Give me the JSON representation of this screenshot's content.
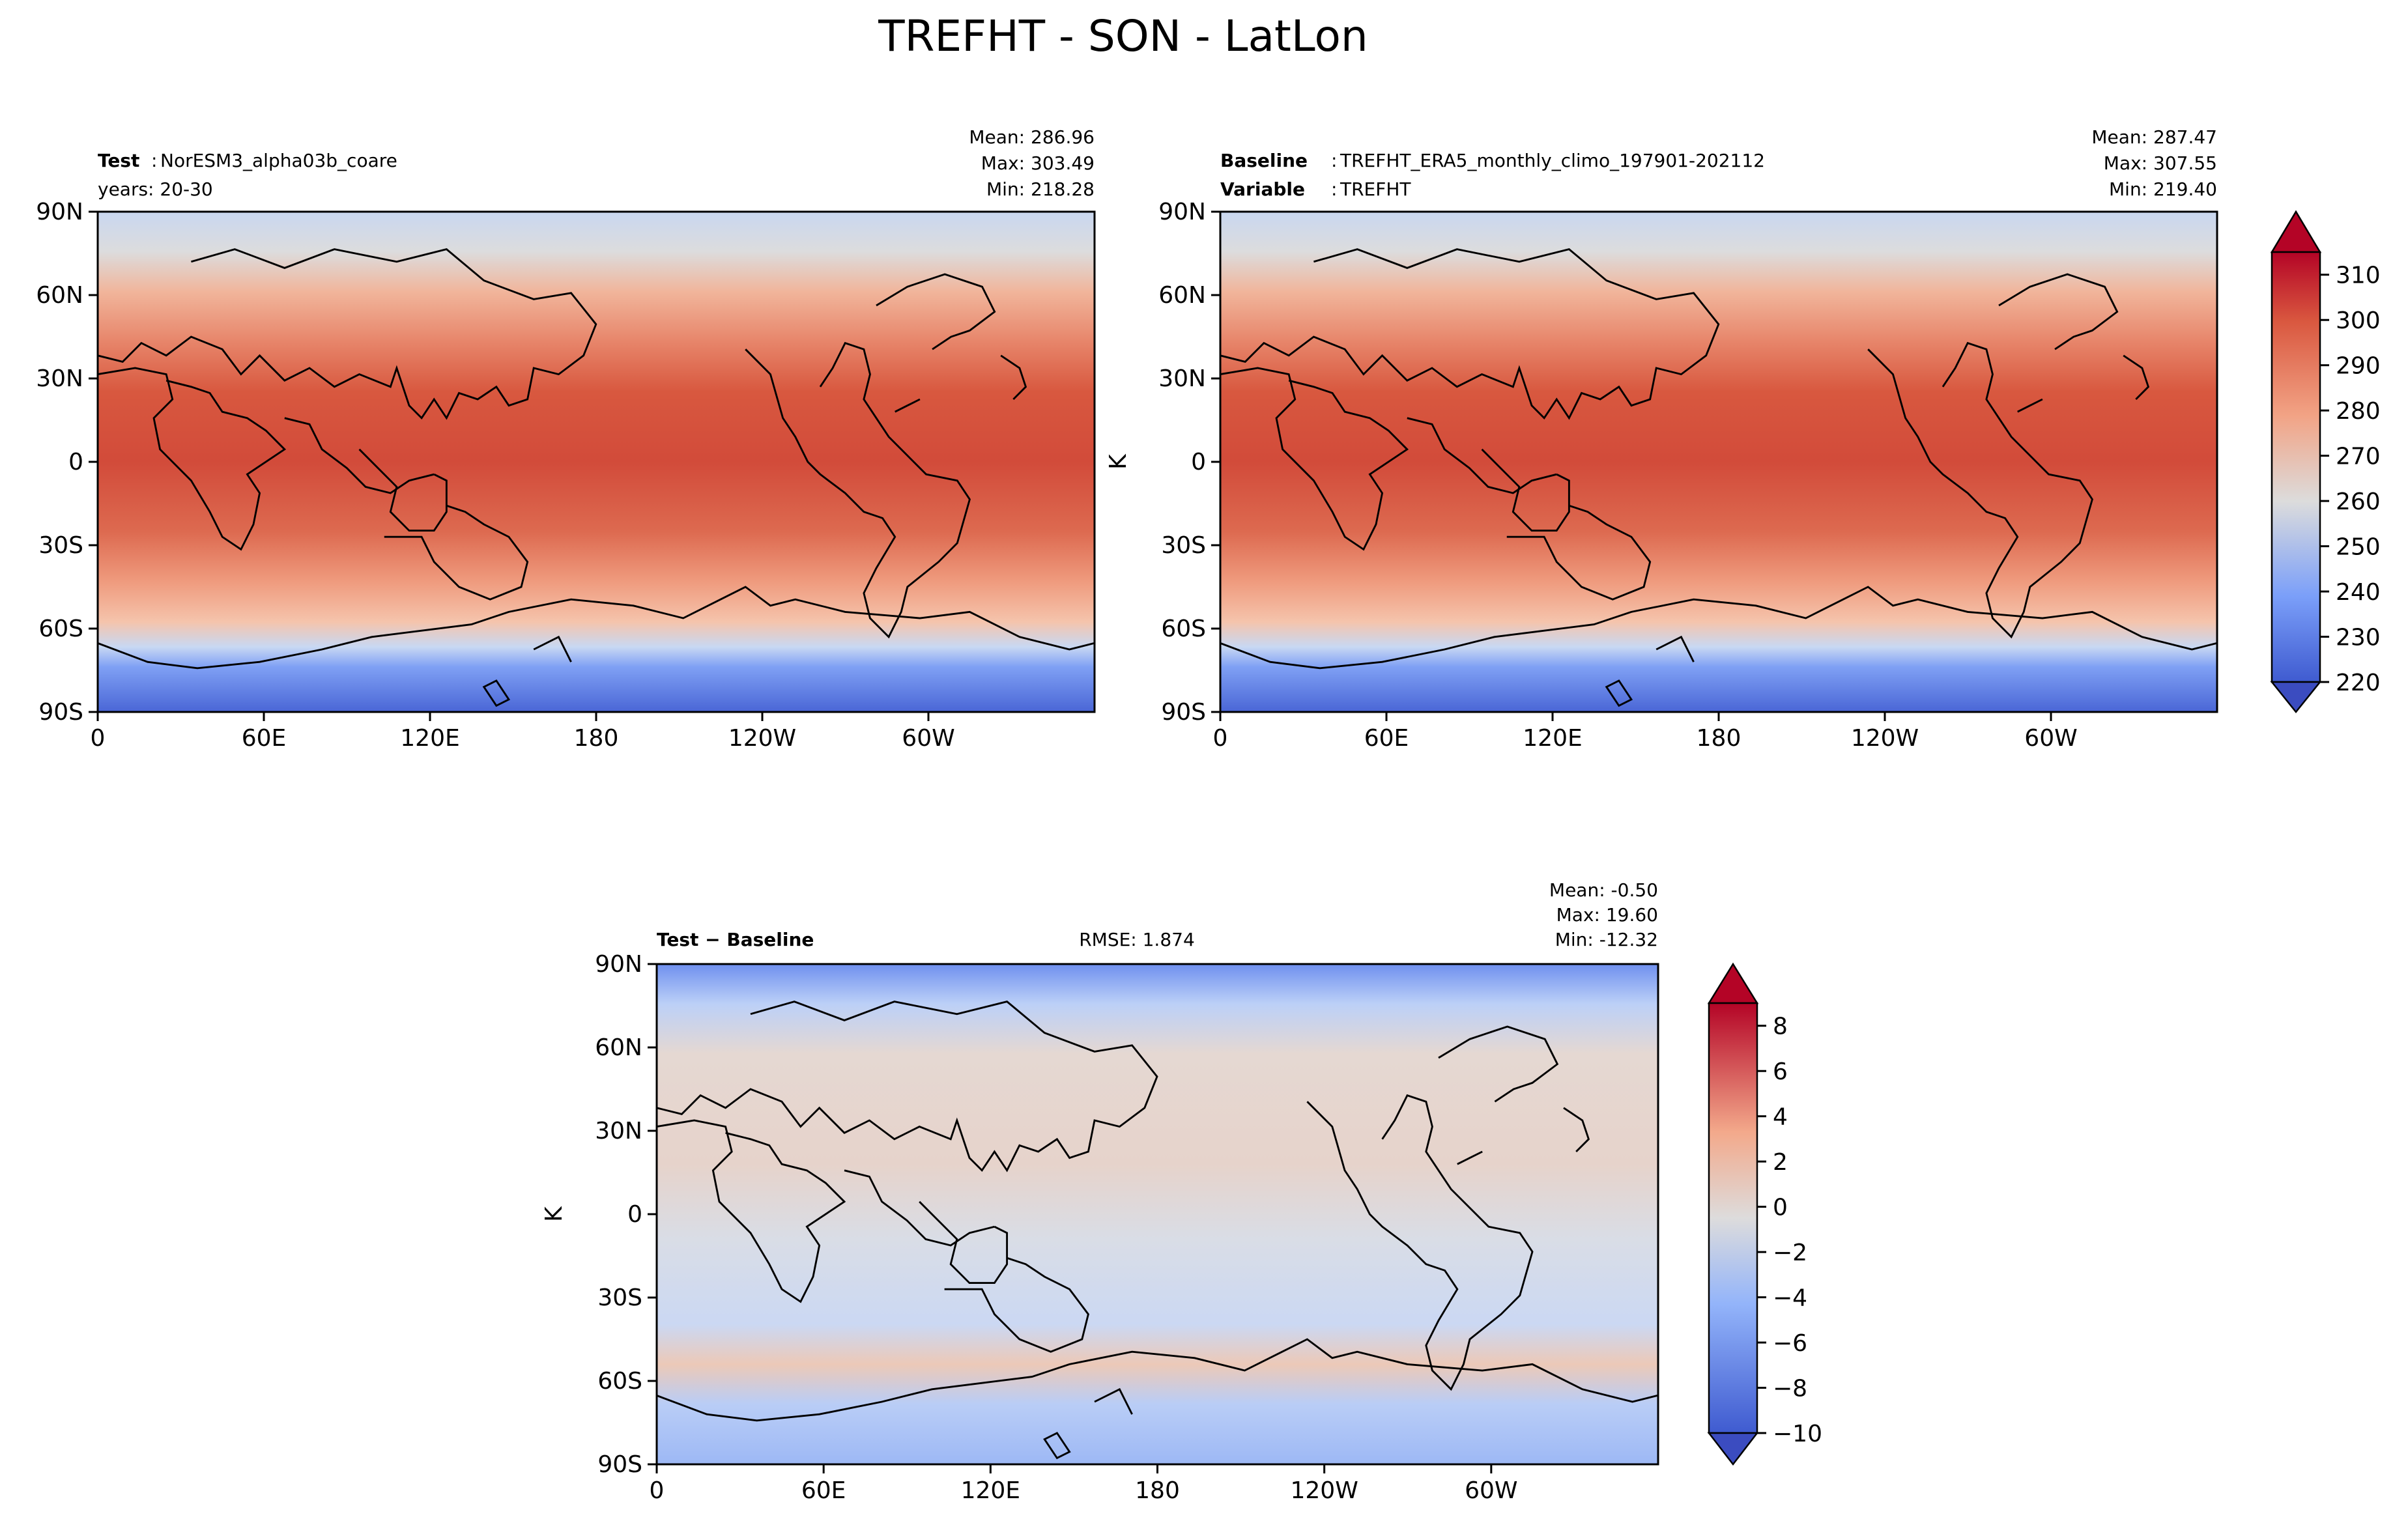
{
  "chart_data": {
    "type": "heatmap",
    "title": "TREFHT - SON - LatLon",
    "x_ticks": [
      "0",
      "60E",
      "120E",
      "180",
      "120W",
      "60W"
    ],
    "y_ticks": [
      "90N",
      "60N",
      "30N",
      "0",
      "30S",
      "60S",
      "90S"
    ],
    "x_range": [
      0,
      360
    ],
    "y_range": [
      -90,
      90
    ],
    "panels": [
      {
        "key": "test",
        "left_label": "Test",
        "left_value": "NorESM3_alpha03b_coare",
        "left_line2": "years: 20-30",
        "center_text": "",
        "mean": "Mean: 286.96",
        "max": "Max: 303.49",
        "min": "Min: 218.28",
        "ylabel": ""
      },
      {
        "key": "baseline",
        "left_label": "Baseline",
        "left_value": "TREFHT_ERA5_monthly_climo_197901-202112",
        "left_label2": "Variable",
        "left_value2": "TREFHT",
        "center_text": "",
        "mean": "Mean: 287.47",
        "max": "Max: 307.55",
        "min": "Min: 219.40",
        "ylabel": "K"
      },
      {
        "key": "diff",
        "left_label": "Test − Baseline",
        "center_text": "RMSE: 1.874",
        "mean": "Mean: -0.50",
        "max": "Max: 19.60",
        "min": "Min: -12.32",
        "ylabel": "K"
      }
    ],
    "colorbars": [
      {
        "key": "abs",
        "ticks": [
          "220",
          "230",
          "240",
          "250",
          "260",
          "270",
          "280",
          "290",
          "300",
          "310"
        ],
        "range": [
          220,
          315
        ],
        "extend": "both",
        "cmap": "coolwarm"
      },
      {
        "key": "diff",
        "ticks": [
          "−10",
          "−8",
          "−6",
          "−4",
          "−2",
          "0",
          "2",
          "4",
          "6",
          "8"
        ],
        "range": [
          -10,
          9
        ],
        "extend": "both",
        "cmap": "coolwarm"
      }
    ]
  }
}
